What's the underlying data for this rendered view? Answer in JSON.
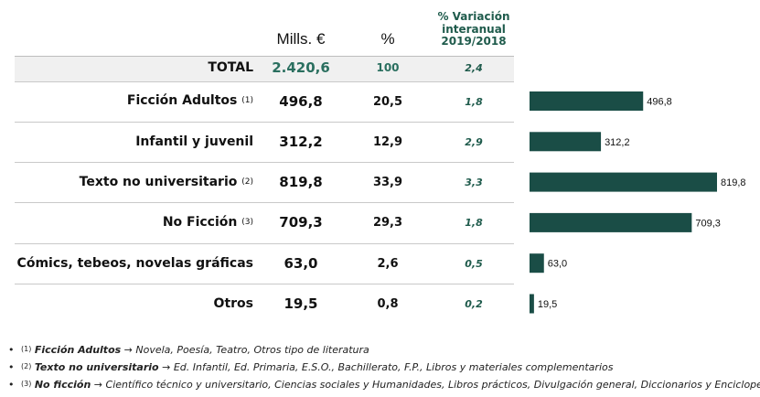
{
  "chart_data": {
    "type": "table",
    "headers": {
      "value": "Mills. €",
      "percent": "%",
      "variation": [
        "% Variación",
        "interanual",
        "2019/2018"
      ]
    },
    "total": {
      "label": "TOTAL",
      "value": "2.420,6",
      "percent": "100",
      "variation": "2,4"
    },
    "rows": [
      {
        "label": "Ficción Adultos",
        "note": "(1)",
        "value": "496,8",
        "percent": "20,5",
        "variation": "1,8",
        "bar": 496.8,
        "bar_label": "496,8"
      },
      {
        "label": "Infantil y juvenil",
        "note": "",
        "value": "312,2",
        "percent": "12,9",
        "variation": "2,9",
        "bar": 312.2,
        "bar_label": "312,2"
      },
      {
        "label": "Texto no universitario",
        "note": "(2)",
        "value": "819,8",
        "percent": "33,9",
        "variation": "3,3",
        "bar": 819.8,
        "bar_label": "819,8"
      },
      {
        "label": "No Ficción",
        "note": "(3)",
        "value": "709,3",
        "percent": "29,3",
        "variation": "1,8",
        "bar": 709.3,
        "bar_label": "709,3"
      },
      {
        "label": "Cómics, tebeos, novelas gráficas",
        "note": "",
        "value": "63,0",
        "percent": "2,6",
        "variation": "0,5",
        "bar": 63.0,
        "bar_label": "63,0"
      },
      {
        "label": "Otros",
        "note": "",
        "value": "19,5",
        "percent": "0,8",
        "variation": "0,2",
        "bar": 19.5,
        "bar_label": "19,5"
      }
    ],
    "bar_max": 819.8,
    "bar_color": "#1a4d46"
  },
  "footnotes": [
    {
      "bullet": "•",
      "mark": "(1)",
      "term": "Ficción Adultos",
      "arrow": "→",
      "text": "Novela, Poesía, Teatro, Otros tipo de literatura"
    },
    {
      "bullet": "•",
      "mark": "(2)",
      "term": "Texto no universitario",
      "arrow": "→",
      "text": "Ed. Infantil, Ed. Primaria, E.S.O., Bachillerato, F.P., Libros y materiales complementarios"
    },
    {
      "bullet": "•",
      "mark": "(3)",
      "term": "No ficción",
      "arrow": "→",
      "text": "Científico técnico y universitario, Ciencias sociales y Humanidades, Libros prácticos, Divulgación general, Diccionarios y Enciclopedias"
    }
  ]
}
